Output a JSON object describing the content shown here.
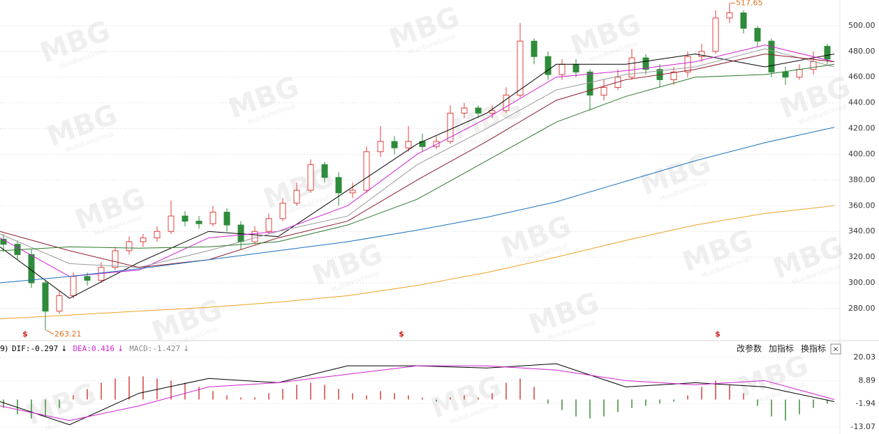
{
  "watermark": "MBG",
  "watermark_sub": "MultiBankGroup",
  "prefix": "9)",
  "toolbar": [
    "改参数",
    "加指标",
    "换指标"
  ],
  "close": "×",
  "chart_data": [
    {
      "type": "candlestick",
      "up_color": "#e0403c",
      "down_color": "#2e8b3a",
      "ylim": [
        255.6,
        520
      ],
      "yticks": [
        {
          "value": 280,
          "label": "280.00"
        },
        {
          "value": 300,
          "label": "300.00"
        },
        {
          "value": 320,
          "label": "320.00"
        },
        {
          "value": 340,
          "label": "340.00"
        },
        {
          "value": 360,
          "label": "360.00"
        },
        {
          "value": 380,
          "label": "380.00"
        },
        {
          "value": 400,
          "label": "400.00"
        },
        {
          "value": 420,
          "label": "420.00"
        },
        {
          "value": 440,
          "label": "440.00"
        },
        {
          "value": 460,
          "label": "460.00"
        },
        {
          "value": 480,
          "label": "480.00"
        },
        {
          "value": 500,
          "label": "500.00"
        }
      ],
      "grid": true,
      "ohlc": [
        [
          334,
          338,
          324,
          330
        ],
        [
          330,
          333,
          318,
          322
        ],
        [
          322,
          326,
          296,
          300
        ],
        [
          300,
          302,
          263.21,
          278
        ],
        [
          278,
          294,
          276,
          290
        ],
        [
          290,
          308,
          288,
          305
        ],
        [
          305,
          308,
          298,
          302
        ],
        [
          302,
          316,
          300,
          312
        ],
        [
          312,
          328,
          310,
          325
        ],
        [
          325,
          336,
          322,
          332
        ],
        [
          332,
          338,
          328,
          335
        ],
        [
          335,
          344,
          332,
          340
        ],
        [
          340,
          364,
          338,
          352
        ],
        [
          352,
          356,
          344,
          348
        ],
        [
          348,
          352,
          342,
          346
        ],
        [
          346,
          360,
          344,
          355
        ],
        [
          355,
          358,
          340,
          345
        ],
        [
          345,
          348,
          326,
          332
        ],
        [
          332,
          344,
          330,
          340
        ],
        [
          340,
          354,
          338,
          350
        ],
        [
          350,
          366,
          348,
          362
        ],
        [
          362,
          378,
          360,
          372
        ],
        [
          372,
          396,
          370,
          392
        ],
        [
          392,
          394,
          378,
          382
        ],
        [
          382,
          386,
          360,
          370
        ],
        [
          370,
          378,
          366,
          372
        ],
        [
          372,
          406,
          370,
          402
        ],
        [
          402,
          422,
          398,
          410
        ],
        [
          410,
          414,
          400,
          405
        ],
        [
          405,
          422,
          402,
          410
        ],
        [
          410,
          416,
          402,
          406
        ],
        [
          406,
          414,
          404,
          410
        ],
        [
          410,
          438,
          408,
          432
        ],
        [
          432,
          440,
          428,
          436
        ],
        [
          436,
          438,
          428,
          432
        ],
        [
          432,
          438,
          428,
          434
        ],
        [
          434,
          452,
          432,
          446
        ],
        [
          446,
          502,
          444,
          488
        ],
        [
          488,
          490,
          470,
          476
        ],
        [
          476,
          480,
          458,
          462
        ],
        [
          462,
          474,
          458,
          470
        ],
        [
          470,
          474,
          460,
          464
        ],
        [
          464,
          466,
          434,
          446
        ],
        [
          446,
          458,
          442,
          452
        ],
        [
          452,
          466,
          450,
          460
        ],
        [
          460,
          482,
          458,
          475
        ],
        [
          475,
          478,
          462,
          466
        ],
        [
          466,
          470,
          452,
          458
        ],
        [
          458,
          468,
          454,
          464
        ],
        [
          464,
          480,
          460,
          476
        ],
        [
          476,
          486,
          472,
          480
        ],
        [
          480,
          512,
          478,
          506
        ],
        [
          506,
          517.65,
          502,
          510
        ],
        [
          510,
          512,
          494,
          498
        ],
        [
          498,
          500,
          484,
          488
        ],
        [
          488,
          490,
          460,
          464
        ],
        [
          464,
          468,
          454,
          460
        ],
        [
          460,
          470,
          458,
          466
        ],
        [
          466,
          480,
          462,
          472
        ],
        [
          484,
          486,
          470,
          474
        ]
      ],
      "series": [
        {
          "color": "#000000",
          "values": [
            328,
            288,
            316,
            340,
            336,
            372,
            408,
            432,
            470,
            470,
            478,
            468,
            478
          ]
        },
        {
          "color": "#d020d0",
          "values": [
            335,
            305,
            310,
            335,
            340,
            360,
            400,
            428,
            460,
            465,
            472,
            485,
            472
          ]
        },
        {
          "color": "#999999",
          "values": [
            338,
            315,
            312,
            325,
            340,
            352,
            392,
            420,
            450,
            462,
            468,
            482,
            468
          ]
        },
        {
          "color": "#8b1a2a",
          "values": [
            340,
            325,
            312,
            318,
            335,
            348,
            380,
            410,
            442,
            458,
            466,
            478,
            472
          ]
        },
        {
          "color": "#2a7a2a",
          "values": [
            325,
            328,
            327,
            328,
            332,
            345,
            365,
            395,
            425,
            445,
            460,
            462,
            470
          ]
        },
        {
          "color": "#1a70c0",
          "values": [
            300,
            305,
            311,
            318,
            325,
            332,
            341,
            351,
            363,
            379,
            395,
            409,
            421
          ]
        },
        {
          "color": "#f0a020",
          "values": [
            272,
            275,
            278,
            281,
            285,
            290,
            298,
            308,
            320,
            333,
            345,
            354,
            360
          ]
        }
      ],
      "annotations": [
        "263.21",
        "517.65"
      ],
      "annotation_color": "#e07020",
      "signals": [
        "$",
        "$",
        "$"
      ],
      "signal_color": "#d02020"
    },
    {
      "type": "macd",
      "legend": [
        {
          "text": "DIF:-0.297",
          "arrow": "↓",
          "color": "#000000"
        },
        {
          "text": "DEA:0.416",
          "arrow": "↓",
          "color": "#d020d0"
        },
        {
          "text": "MACD:-1.427",
          "arrow": "↓",
          "color": "#888888"
        }
      ],
      "ylim": [
        -13.07,
        20.03
      ],
      "yticks": [
        20.03,
        8.89,
        -1.94,
        -13.07
      ],
      "up_color": "#d04040",
      "down_color": "#3a8a3a",
      "histogram": [
        -4,
        -7,
        -9,
        -8,
        -4,
        2,
        5,
        8,
        10,
        11,
        11,
        10,
        9,
        8,
        6,
        4,
        2,
        1,
        1,
        3,
        5,
        7,
        8,
        7,
        5,
        3,
        2,
        4,
        3,
        2,
        1,
        -1,
        1,
        2,
        1,
        3,
        8,
        10,
        6,
        -2,
        -5,
        -8,
        -9,
        -8,
        -6,
        -4,
        -3,
        -2,
        -1,
        2,
        6,
        9,
        7,
        3,
        -3,
        -8,
        -10,
        -7,
        -4,
        -2
      ],
      "series": [
        {
          "color": "#000000",
          "values": [
            -1,
            -12,
            3,
            10,
            8,
            16,
            16,
            15,
            17,
            6,
            8,
            6,
            -1
          ]
        },
        {
          "color": "#d020d0",
          "values": [
            -3,
            -10,
            -3,
            6,
            8,
            12,
            16,
            16,
            14,
            9,
            7,
            9,
            0
          ]
        }
      ]
    }
  ]
}
